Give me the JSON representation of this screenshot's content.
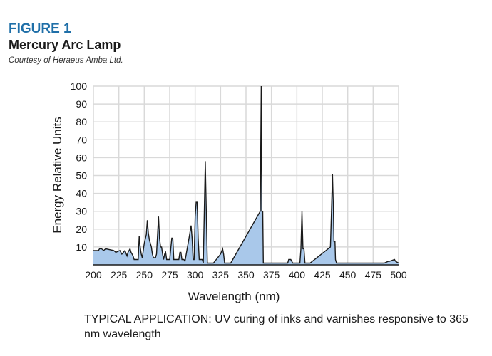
{
  "figure": {
    "label": "FIGURE 1",
    "title": "Mercury Arc Lamp",
    "credit": "Courtesy of Heraeus Amba Ltd."
  },
  "caption": "TYPICAL APPLICATION: UV curing of inks and varnishes responsive to 365 nm wavelength",
  "chart_data": {
    "type": "area",
    "title": "",
    "xlabel": "Wavelength (nm)",
    "ylabel": "Energy Relative Units",
    "xlim": [
      200,
      500
    ],
    "ylim": [
      0,
      100
    ],
    "x_ticks": [
      200,
      225,
      250,
      275,
      300,
      325,
      350,
      375,
      400,
      425,
      450,
      475,
      500
    ],
    "y_ticks": [
      10,
      20,
      30,
      40,
      50,
      60,
      70,
      80,
      90,
      100
    ],
    "grid": true,
    "fill_color": "#a9c8ea",
    "line_color": "#1a1a1a",
    "series": [
      {
        "x": [
          200,
          205,
          206,
          208,
          210,
          212,
          220,
          222,
          226,
          228,
          231,
          233,
          234,
          236,
          237,
          239,
          240,
          241,
          244,
          245,
          246,
          247,
          248,
          249,
          250,
          252,
          253,
          254,
          255,
          256,
          257,
          258,
          259,
          261,
          262,
          264,
          265,
          266,
          267,
          268,
          269,
          270,
          271,
          272,
          273,
          274,
          275,
          277,
          278,
          279,
          281,
          283,
          284,
          285,
          286,
          287,
          288,
          289,
          290,
          294,
          296,
          297,
          298,
          299,
          300,
          301,
          302,
          303,
          304,
          305,
          306,
          307,
          308,
          310,
          312,
          313,
          315,
          316,
          318,
          325,
          327,
          328,
          329,
          331,
          333,
          335,
          364,
          365,
          365.5,
          366.5,
          367,
          368,
          370,
          372,
          381,
          391,
          392,
          394,
          396,
          403,
          404,
          405,
          406,
          407,
          408,
          410,
          413,
          433,
          434,
          435,
          436,
          436.5,
          437.5,
          438,
          439,
          440,
          442,
          446,
          454,
          460,
          475,
          486,
          490,
          491,
          496,
          497,
          500
        ],
        "y": [
          8,
          8,
          9,
          9,
          8,
          9,
          8,
          7,
          8,
          6,
          8,
          5,
          7,
          9,
          7,
          5,
          3,
          3,
          3,
          16,
          10,
          6,
          4,
          8,
          12,
          17,
          25,
          18,
          14,
          12,
          10,
          6,
          4,
          4,
          6,
          27,
          15,
          10,
          10,
          6,
          3,
          6,
          7,
          3,
          3,
          3,
          3,
          15,
          15,
          3,
          3,
          3,
          3,
          7,
          7,
          3,
          3,
          3,
          2,
          15,
          22,
          15,
          3,
          3,
          27,
          35,
          35,
          15,
          3,
          3,
          3,
          3,
          1,
          58,
          1,
          1,
          1,
          1,
          1,
          6,
          9,
          6,
          1,
          1,
          1,
          1,
          30,
          100,
          30,
          30,
          1,
          1,
          1,
          1,
          1,
          1,
          3,
          3,
          1,
          1,
          9,
          30,
          9,
          9,
          1,
          1,
          1,
          10,
          29,
          51,
          29,
          13,
          13,
          3,
          1,
          1,
          1,
          1,
          1,
          1,
          1,
          1,
          2,
          2,
          3,
          2,
          1
        ]
      }
    ]
  }
}
